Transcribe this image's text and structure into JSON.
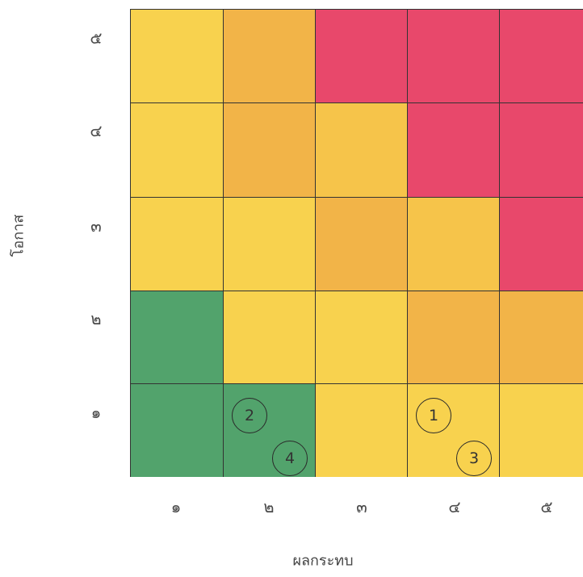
{
  "axes": {
    "y_title": "โอกาส",
    "x_title": "ผลกระทบ",
    "y_ticks": [
      "๕",
      "๔",
      "๓",
      "๒",
      "๑"
    ],
    "x_ticks": [
      "๑",
      "๒",
      "๓",
      "๔",
      "๕"
    ]
  },
  "colors": {
    "green": "#52a36c",
    "yellow": "#f8d24e",
    "yellow_orange": "#f6c44a",
    "orange": "#f2b448",
    "red": "#e8486b"
  },
  "grid": [
    [
      "yellow",
      "orange",
      "red",
      "red",
      "red"
    ],
    [
      "yellow",
      "orange",
      "yellow_orange",
      "red",
      "red"
    ],
    [
      "yellow",
      "yellow",
      "orange",
      "yellow_orange",
      "red"
    ],
    [
      "green",
      "yellow",
      "yellow",
      "orange",
      "orange"
    ],
    [
      "green",
      "green",
      "yellow",
      "yellow",
      "yellow"
    ]
  ],
  "markers": [
    {
      "label": "1",
      "impact": 4,
      "likelihood": 1
    },
    {
      "label": "2",
      "impact": 2,
      "likelihood": 1
    },
    {
      "label": "3",
      "impact": 4,
      "likelihood": 1
    },
    {
      "label": "4",
      "impact": 2,
      "likelihood": 1
    }
  ]
}
